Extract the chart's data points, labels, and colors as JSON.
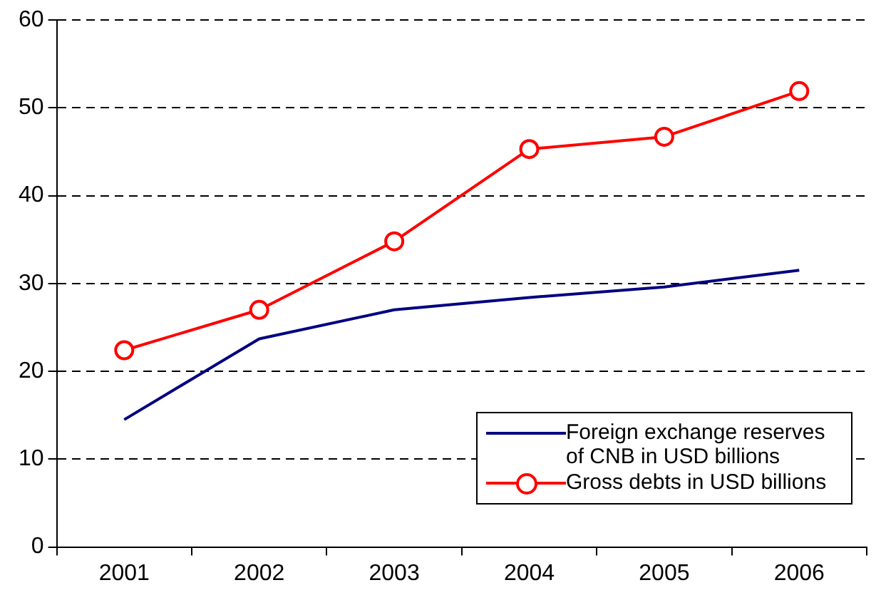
{
  "chart_data": {
    "type": "line",
    "categories": [
      "2001",
      "2002",
      "2003",
      "2004",
      "2005",
      "2006"
    ],
    "series": [
      {
        "name": "Foreign exchange reserves of CNB in USD billions",
        "color": "#000080",
        "marker": "none",
        "values": [
          14.5,
          23.7,
          27.0,
          28.4,
          29.6,
          31.5
        ]
      },
      {
        "name": "Gross debts in USD billions",
        "color": "#ff0000",
        "marker": "circle",
        "values": [
          22.4,
          27.0,
          34.8,
          45.3,
          46.7,
          51.9
        ]
      }
    ],
    "ylim": [
      0,
      60
    ],
    "yticks": [
      0,
      10,
      20,
      30,
      40,
      50,
      60
    ],
    "grid": "y",
    "line_style": "solid",
    "legend": "bottom right"
  }
}
